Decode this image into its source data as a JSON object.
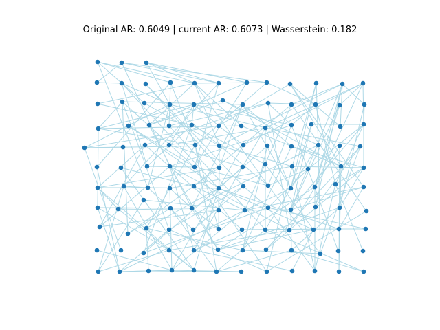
{
  "title": "Original AR: 0.6049 | current AR: 0.6073 | Wasserstein: 0.182",
  "colors": {
    "node": "#1f77b4",
    "edge": "#add8e6",
    "background": "#ffffff"
  },
  "chart_data": {
    "type": "graph",
    "layout": "grid-like node layout",
    "node_count": 126
  }
}
